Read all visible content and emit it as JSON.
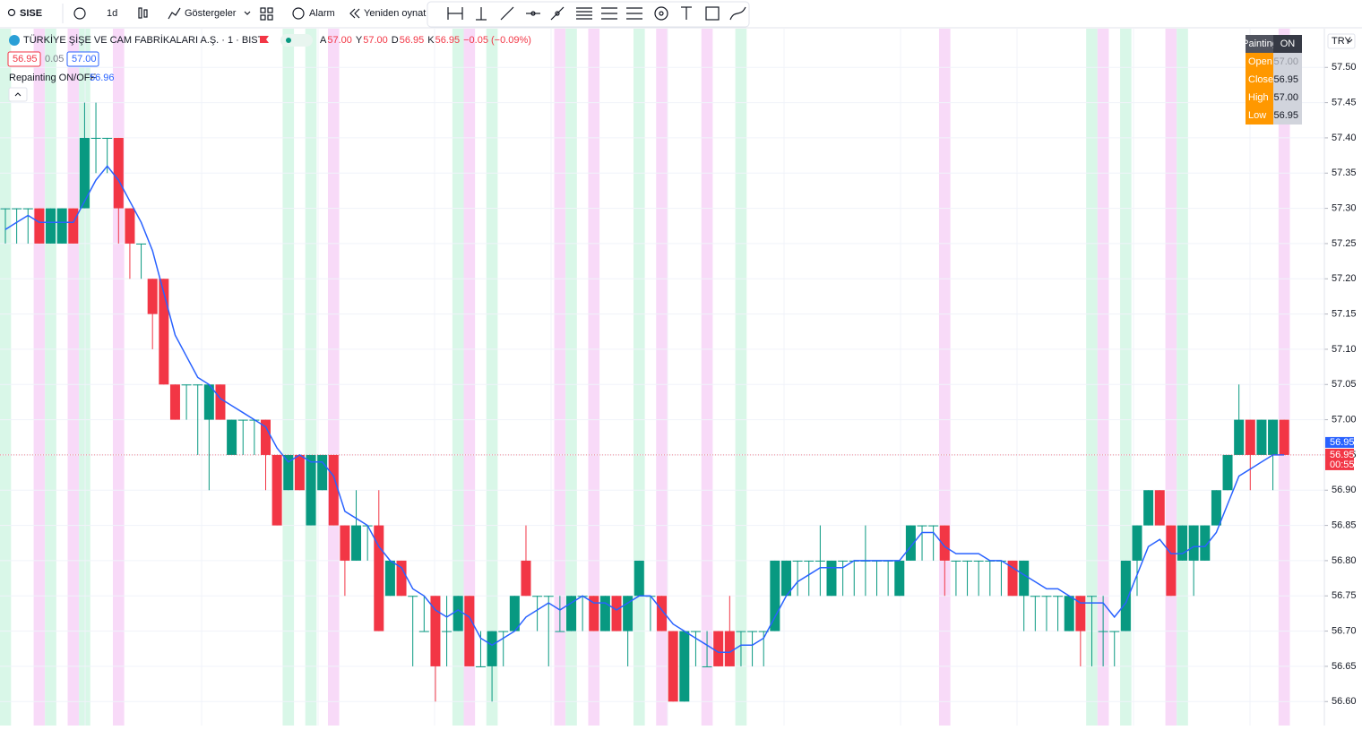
{
  "toolbar": {
    "symbol": "SISE",
    "interval": "1d",
    "indicators": "Göstergeler",
    "alarm": "Alarm",
    "replay": "Yeniden oynat"
  },
  "legend": {
    "title": "TÜRKİYE ŞİŞE VE CAM FABRİKALARI A.Ş. · 1 · BIST",
    "ohlc": [
      {
        "label": "A",
        "value": "57.00"
      },
      {
        "label": "Y",
        "value": "57.00"
      },
      {
        "label": "D",
        "value": "56.95"
      },
      {
        "label": "K",
        "value": "56.95"
      }
    ],
    "change": "−0.05 (−0.09%)",
    "bid": "56.95",
    "spread": "0.05",
    "ask": "57.00",
    "indicator_name": "Repainting ON/OFF",
    "indicator_value": "56.96"
  },
  "info_table": {
    "header": [
      "Painting",
      "ON"
    ],
    "rows": [
      [
        "Open",
        "57.00"
      ],
      [
        "Close",
        "56.95"
      ],
      [
        "High",
        "57.00"
      ],
      [
        "Low",
        "56.95"
      ]
    ]
  },
  "price_scale": {
    "currency": "TRY",
    "ma_label": "56.95",
    "last_label": "56.95",
    "countdown": "00:55"
  },
  "chart_data": {
    "type": "candlestick",
    "up_color": "#089981",
    "down_color": "#f23645",
    "grid": true,
    "ylim": [
      56.566,
      57.555
    ],
    "yticks": [
      {
        "value": 56.6,
        "label": "56.60"
      },
      {
        "value": 56.65,
        "label": "56.65"
      },
      {
        "value": 56.7,
        "label": "56.70"
      },
      {
        "value": 56.75,
        "label": "56.75"
      },
      {
        "value": 56.8,
        "label": "56.80"
      },
      {
        "value": 56.85,
        "label": "56.85"
      },
      {
        "value": 56.9,
        "label": "56.90"
      },
      {
        "value": 56.95,
        "label": "56.95"
      },
      {
        "value": 57.0,
        "label": "57.00"
      },
      {
        "value": 57.05,
        "label": "57.05"
      },
      {
        "value": 57.1,
        "label": "57.10"
      },
      {
        "value": 57.15,
        "label": "57.15"
      },
      {
        "value": 57.2,
        "label": "57.20"
      },
      {
        "value": 57.25,
        "label": "57.25"
      },
      {
        "value": 57.3,
        "label": "57.30"
      },
      {
        "value": 57.35,
        "label": "57.35"
      },
      {
        "value": 57.4,
        "label": "57.40"
      },
      {
        "value": 57.45,
        "label": "57.45"
      },
      {
        "value": 57.5,
        "label": "57.50"
      }
    ],
    "open": [
      57.3,
      57.3,
      57.3,
      57.3,
      57.25,
      57.25,
      57.3,
      57.3,
      57.4,
      57.4,
      57.4,
      57.3,
      57.25,
      57.2,
      57.2,
      57.05,
      57.05,
      57.05,
      57.0,
      57.05,
      56.95,
      57.0,
      57.0,
      57.0,
      56.95,
      56.9,
      56.95,
      56.85,
      56.9,
      56.95,
      56.85,
      56.8,
      56.85,
      56.85,
      56.75,
      56.8,
      56.75,
      56.7,
      56.75,
      56.7,
      56.7,
      56.75,
      56.65,
      56.65,
      56.7,
      56.7,
      56.8,
      56.75,
      56.75,
      56.7,
      56.7,
      56.75,
      56.75,
      56.7,
      56.75,
      56.7,
      56.75,
      56.75,
      56.75,
      56.7,
      56.6,
      56.7,
      56.65,
      56.7,
      56.7,
      56.7,
      56.7,
      56.7,
      56.7,
      56.75,
      56.8,
      56.8,
      56.8,
      56.75,
      56.8,
      56.8,
      56.8,
      56.8,
      56.8,
      56.75,
      56.8,
      56.85,
      56.85,
      56.85,
      56.8,
      56.8,
      56.8,
      56.8,
      56.8,
      56.8,
      56.75,
      56.75,
      56.75,
      56.75,
      56.7,
      56.75,
      56.75,
      56.7,
      56.7,
      56.7,
      56.8,
      56.85,
      56.9,
      56.85,
      56.8,
      56.8,
      56.8,
      56.85,
      56.9,
      56.95,
      57.0,
      56.95,
      56.95,
      57.0
    ],
    "high": [
      57.3,
      57.3,
      57.3,
      57.3,
      57.3,
      57.3,
      57.3,
      57.45,
      57.45,
      57.4,
      57.4,
      57.3,
      57.25,
      57.2,
      57.2,
      57.05,
      57.05,
      57.05,
      57.05,
      57.05,
      57.0,
      57.0,
      57.0,
      57.0,
      56.95,
      56.95,
      56.95,
      56.95,
      56.95,
      56.95,
      56.85,
      56.9,
      56.85,
      56.9,
      56.8,
      56.8,
      56.75,
      56.75,
      56.75,
      56.75,
      56.75,
      56.75,
      56.7,
      56.7,
      56.7,
      56.75,
      56.85,
      56.75,
      56.75,
      56.75,
      56.75,
      56.75,
      56.75,
      56.75,
      56.75,
      56.75,
      56.8,
      56.75,
      56.75,
      56.7,
      56.7,
      56.7,
      56.7,
      56.7,
      56.75,
      56.7,
      56.7,
      56.7,
      56.8,
      56.8,
      56.8,
      56.8,
      56.85,
      56.8,
      56.8,
      56.8,
      56.85,
      56.8,
      56.8,
      56.8,
      56.85,
      56.85,
      56.85,
      56.85,
      56.8,
      56.8,
      56.8,
      56.8,
      56.8,
      56.8,
      56.8,
      56.75,
      56.75,
      56.75,
      56.75,
      56.75,
      56.75,
      56.75,
      56.7,
      56.8,
      56.85,
      56.9,
      56.9,
      56.85,
      56.85,
      56.85,
      56.85,
      56.9,
      56.95,
      57.05,
      57.0,
      57.0,
      57.0,
      57.0
    ],
    "low": [
      57.25,
      57.25,
      57.25,
      57.25,
      57.25,
      57.25,
      57.25,
      57.3,
      57.35,
      57.35,
      57.25,
      57.2,
      57.2,
      57.1,
      57.05,
      57.0,
      57.0,
      56.95,
      56.9,
      57.0,
      56.95,
      56.95,
      56.95,
      56.9,
      56.85,
      56.9,
      56.9,
      56.85,
      56.9,
      56.85,
      56.75,
      56.8,
      56.8,
      56.7,
      56.75,
      56.75,
      56.65,
      56.7,
      56.6,
      56.65,
      56.7,
      56.65,
      56.65,
      56.6,
      56.65,
      56.7,
      56.75,
      56.7,
      56.65,
      56.7,
      56.7,
      56.7,
      56.7,
      56.7,
      56.7,
      56.65,
      56.75,
      56.7,
      56.7,
      56.6,
      56.6,
      56.65,
      56.65,
      56.65,
      56.65,
      56.65,
      56.65,
      56.65,
      56.7,
      56.75,
      56.75,
      56.75,
      56.75,
      56.75,
      56.75,
      56.75,
      56.75,
      56.75,
      56.75,
      56.75,
      56.8,
      56.8,
      56.8,
      56.75,
      56.75,
      56.75,
      56.75,
      56.75,
      56.75,
      56.75,
      56.7,
      56.7,
      56.7,
      56.7,
      56.7,
      56.65,
      56.65,
      56.65,
      56.65,
      56.7,
      56.75,
      56.85,
      56.85,
      56.75,
      56.8,
      56.75,
      56.8,
      56.85,
      56.9,
      56.95,
      56.9,
      56.95,
      56.9,
      56.95
    ],
    "close": [
      57.3,
      57.3,
      57.3,
      57.25,
      57.3,
      57.3,
      57.25,
      57.4,
      57.4,
      57.4,
      57.3,
      57.25,
      57.25,
      57.15,
      57.05,
      57.0,
      57.05,
      57.05,
      57.05,
      57.0,
      57.0,
      57.0,
      57.0,
      56.95,
      56.85,
      56.95,
      56.9,
      56.95,
      56.95,
      56.85,
      56.8,
      56.85,
      56.85,
      56.7,
      56.8,
      56.75,
      56.75,
      56.7,
      56.65,
      56.7,
      56.75,
      56.65,
      56.65,
      56.7,
      56.7,
      56.75,
      56.75,
      56.75,
      56.75,
      56.7,
      56.75,
      56.75,
      56.7,
      56.75,
      56.7,
      56.75,
      56.8,
      56.75,
      56.7,
      56.6,
      56.7,
      56.7,
      56.65,
      56.65,
      56.65,
      56.7,
      56.7,
      56.7,
      56.8,
      56.8,
      56.8,
      56.8,
      56.8,
      56.8,
      56.8,
      56.8,
      56.8,
      56.8,
      56.8,
      56.8,
      56.85,
      56.85,
      56.85,
      56.8,
      56.8,
      56.8,
      56.8,
      56.8,
      56.8,
      56.75,
      56.8,
      56.75,
      56.75,
      56.75,
      56.75,
      56.7,
      56.75,
      56.7,
      56.7,
      56.8,
      56.85,
      56.9,
      56.85,
      56.75,
      56.85,
      56.85,
      56.85,
      56.9,
      56.95,
      57.0,
      56.95,
      57.0,
      57.0,
      56.95
    ],
    "ma": {
      "color": "#2962ff",
      "values": [
        57.27,
        57.28,
        57.29,
        57.28,
        57.28,
        57.28,
        57.28,
        57.31,
        57.34,
        57.36,
        57.34,
        57.31,
        57.28,
        57.24,
        57.18,
        57.12,
        57.09,
        57.06,
        57.05,
        57.03,
        57.02,
        57.01,
        57.0,
        56.99,
        56.96,
        56.94,
        56.95,
        56.94,
        56.94,
        56.92,
        56.87,
        56.86,
        56.85,
        56.82,
        56.8,
        56.79,
        56.76,
        56.75,
        56.73,
        56.72,
        56.73,
        56.72,
        56.69,
        56.68,
        56.69,
        56.7,
        56.72,
        56.73,
        56.74,
        56.73,
        56.74,
        56.75,
        56.74,
        56.74,
        56.73,
        56.74,
        56.75,
        56.75,
        56.73,
        56.71,
        56.7,
        56.69,
        56.68,
        56.67,
        56.67,
        56.68,
        56.68,
        56.69,
        56.72,
        56.75,
        56.77,
        56.78,
        56.79,
        56.79,
        56.79,
        56.8,
        56.8,
        56.8,
        56.8,
        56.8,
        56.82,
        56.84,
        56.84,
        56.82,
        56.81,
        56.81,
        56.81,
        56.8,
        56.8,
        56.79,
        56.78,
        56.77,
        56.76,
        56.76,
        56.75,
        56.74,
        56.74,
        56.74,
        56.72,
        56.74,
        56.78,
        56.82,
        56.83,
        56.81,
        56.81,
        56.82,
        56.82,
        56.84,
        56.88,
        56.92,
        56.93,
        56.94,
        56.95,
        56.95
      ]
    },
    "band_colors": [
      "#d9f7e8",
      null,
      null,
      "#f8daf8",
      "#d9f7e8",
      null,
      "#f8daf8",
      "#d9f7e8",
      null,
      null,
      "#f8daf8",
      null,
      null,
      null,
      null,
      null,
      null,
      null,
      null,
      null,
      null,
      null,
      null,
      null,
      null,
      "#d9f7e8",
      null,
      "#d9f7e8",
      null,
      "#f8daf8",
      null,
      null,
      null,
      null,
      null,
      null,
      null,
      null,
      null,
      null,
      "#d9f7e8",
      "#f8daf8",
      null,
      "#d9f7e8",
      null,
      null,
      null,
      null,
      null,
      "#f8daf8",
      "#d9f7e8",
      null,
      "#f8daf8",
      null,
      null,
      null,
      "#d9f7e8",
      null,
      "#f8daf8",
      null,
      null,
      null,
      "#f8daf8",
      null,
      null,
      "#d9f7e8",
      null,
      null,
      null,
      null,
      null,
      null,
      null,
      null,
      null,
      null,
      null,
      null,
      null,
      null,
      null,
      null,
      null,
      "#f8daf8",
      null,
      null,
      null,
      null,
      null,
      null,
      null,
      null,
      null,
      null,
      null,
      null,
      "#d9f7e8",
      "#f8daf8",
      null,
      "#d9f7e8",
      null,
      null,
      null,
      "#f8daf8",
      "#d9f7e8",
      null,
      null,
      null,
      null,
      null,
      null,
      null,
      null,
      "#f8daf8"
    ]
  }
}
